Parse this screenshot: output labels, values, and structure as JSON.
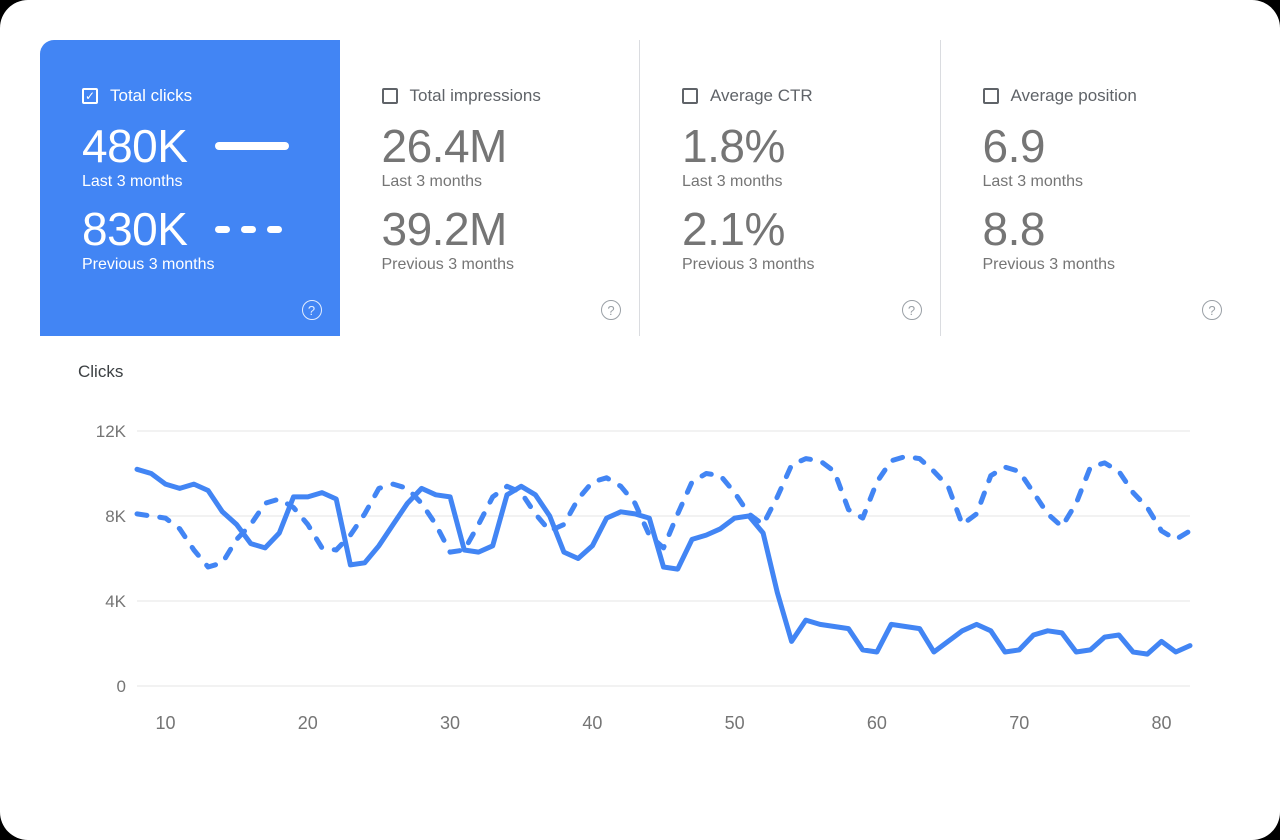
{
  "colors": {
    "accent": "#4285f4",
    "metric_text": "#757575",
    "grid": "#e4e4e4"
  },
  "icons": {
    "check": "✓",
    "help": "?"
  },
  "cards": [
    {
      "id": "total-clicks",
      "label": "Total clicks",
      "checked": true,
      "selected": true,
      "current_value": "480K",
      "current_label": "Last 3 months",
      "previous_value": "830K",
      "previous_label": "Previous 3 months",
      "current_line_style": "solid",
      "previous_line_style": "dashed"
    },
    {
      "id": "total-impressions",
      "label": "Total impressions",
      "checked": false,
      "selected": false,
      "current_value": "26.4M",
      "current_label": "Last 3 months",
      "previous_value": "39.2M",
      "previous_label": "Previous 3 months"
    },
    {
      "id": "average-ctr",
      "label": "Average CTR",
      "checked": false,
      "selected": false,
      "current_value": "1.8%",
      "current_label": "Last 3 months",
      "previous_value": "2.1%",
      "previous_label": "Previous 3 months"
    },
    {
      "id": "average-position",
      "label": "Average position",
      "checked": false,
      "selected": false,
      "current_value": "6.9",
      "current_label": "Last 3 months",
      "previous_value": "8.8",
      "previous_label": "Previous 3 months"
    }
  ],
  "chart_data": {
    "type": "line",
    "title": "Clicks",
    "ylabel": "Clicks",
    "y_ticks": [
      "0",
      "4K",
      "8K",
      "12K"
    ],
    "y_tick_values": [
      0,
      4000,
      8000,
      12000
    ],
    "ylim": [
      0,
      12000
    ],
    "x_ticks": [
      10,
      20,
      30,
      40,
      50,
      60,
      70,
      80
    ],
    "xlim": [
      8,
      82
    ],
    "grid": "horizontal",
    "legend_position": "none",
    "series": [
      {
        "name": "Last 3 months",
        "style": "solid",
        "color": "#4285f4",
        "x": {
          "start": 8,
          "step": 1
        },
        "values": [
          10200,
          10000,
          9500,
          9300,
          9500,
          9200,
          8200,
          7600,
          6700,
          6500,
          7200,
          8900,
          8900,
          9100,
          8800,
          5700,
          5800,
          6600,
          7600,
          8600,
          9300,
          9000,
          8900,
          6400,
          6300,
          6600,
          9000,
          9400,
          9000,
          8000,
          6300,
          6000,
          6600,
          7900,
          8200,
          8100,
          7900,
          5600,
          5500,
          6900,
          7100,
          7400,
          7900,
          8000,
          7200,
          4400,
          2100,
          3100,
          2900,
          2800,
          2700,
          1700,
          1600,
          2900,
          2800,
          2700,
          1600,
          2100,
          2600,
          2900,
          2600,
          1600,
          1700,
          2400,
          2600,
          2500,
          1600,
          1700,
          2300,
          2400,
          1600,
          1500,
          2100,
          1600,
          1900
        ]
      },
      {
        "name": "Previous 3 months",
        "style": "dashed",
        "color": "#4285f4",
        "x": {
          "start": 8,
          "step": 1
        },
        "values": [
          8100,
          8000,
          7900,
          7400,
          6400,
          5600,
          5800,
          6900,
          7600,
          8600,
          8800,
          8400,
          7600,
          6500,
          6400,
          7100,
          8100,
          9300,
          9500,
          9300,
          8600,
          7600,
          6300,
          6400,
          7600,
          8900,
          9400,
          9100,
          8100,
          7300,
          7600,
          8800,
          9600,
          9800,
          9400,
          8600,
          7100,
          6500,
          8100,
          9600,
          10000,
          9900,
          9100,
          8100,
          7600,
          8900,
          10400,
          10700,
          10600,
          10100,
          8300,
          7900,
          9600,
          10600,
          10800,
          10700,
          10100,
          9400,
          7600,
          8100,
          9900,
          10300,
          10100,
          9100,
          8100,
          7500,
          8600,
          10300,
          10500,
          10100,
          9100,
          8400,
          7300,
          6900,
          7300
        ]
      }
    ]
  }
}
